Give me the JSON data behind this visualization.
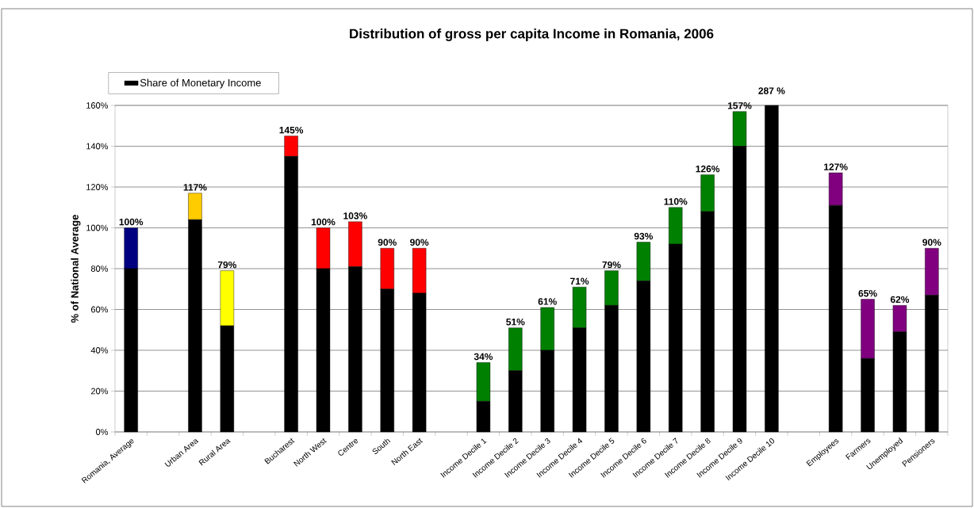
{
  "chart_data": {
    "type": "bar",
    "stacked": true,
    "title": "Distribution of gross per capita Income in Romania, 2006",
    "ylabel": "% of National Average",
    "categories": [
      "Romania, Average",
      null,
      "Urban Area",
      "Rural Area",
      null,
      "Bucharest",
      "North West",
      "Centre",
      "South",
      "North East",
      null,
      "Income Decile 1",
      "Income Decile 2",
      "Income Decile 3",
      "Income Decile 4",
      "Income Decile 5",
      "Income Decile 6",
      "Income Decile 7",
      "Income Decile 8",
      "Income Decile 9",
      "Income Decile 10",
      null,
      "Employees",
      "Farmers",
      "Unemployed",
      "Pensioners"
    ],
    "series": [
      {
        "name": "Share of Monetary Income",
        "color": "#000000",
        "values": [
          80,
          null,
          104,
          52,
          null,
          135,
          80,
          81,
          70,
          68,
          null,
          15,
          30,
          40,
          51,
          62,
          74,
          92,
          108,
          140,
          160,
          null,
          111,
          36,
          49,
          67
        ]
      },
      {
        "colors": [
          "#000080",
          null,
          "#ffcc00",
          "#ffff00",
          null,
          "#ff0000",
          "#ff0000",
          "#ff0000",
          "#ff0000",
          "#ff0000",
          null,
          "#008000",
          "#008000",
          "#008000",
          "#008000",
          "#008000",
          "#008000",
          "#008000",
          "#008000",
          "#008000",
          null,
          null,
          "#800080",
          "#800080",
          "#800080",
          "#800080"
        ],
        "values": [
          20,
          null,
          13,
          27,
          null,
          10,
          20,
          22,
          20,
          22,
          null,
          19,
          21,
          21,
          20,
          17,
          19,
          18,
          18,
          17,
          null,
          null,
          16,
          29,
          13,
          23
        ]
      }
    ],
    "annotations": [
      {
        "text": "100%",
        "x": "Romania, Average",
        "y": 100
      },
      {
        "text": "117%",
        "x": "Urban Area",
        "y": 117
      },
      {
        "text": "79%",
        "x": "Rural Area",
        "y": 79
      },
      {
        "text": "145%",
        "x": "Bucharest",
        "y": 145
      },
      {
        "text": "100%",
        "x": "North West",
        "y": 100
      },
      {
        "text": "103%",
        "x": "Centre",
        "y": 103
      },
      {
        "text": "90%",
        "x": "South",
        "y": 90
      },
      {
        "text": "90%",
        "x": "North East",
        "y": 90
      },
      {
        "text": "34%",
        "x": "Income Decile 1",
        "y": 34
      },
      {
        "text": "51%",
        "x": "Income Decile 2",
        "y": 51
      },
      {
        "text": "61%",
        "x": "Income Decile 3",
        "y": 61
      },
      {
        "text": "71%",
        "x": "Income Decile 4",
        "y": 71
      },
      {
        "text": "79%",
        "x": "Income Decile 5",
        "y": 79
      },
      {
        "text": "93%",
        "x": "Income Decile 6",
        "y": 93
      },
      {
        "text": "110%",
        "x": "Income Decile 7",
        "y": 110
      },
      {
        "text": "126%",
        "x": "Income Decile 8",
        "y": 126
      },
      {
        "text": "157%",
        "x": "Income Decile 9",
        "y": 157
      },
      "287 %",
      {
        "text": "127%",
        "x": "Employees",
        "y": 127
      },
      {
        "text": "65%",
        "x": "Farmers",
        "y": 65
      },
      {
        "text": "62%",
        "x": "Unemployed",
        "y": 62
      },
      {
        "text": "90%",
        "x": "Pensioners",
        "y": 90
      }
    ],
    "ylim": [
      0,
      160
    ],
    "yticks": [
      {
        "value": 0,
        "label": "0%"
      },
      {
        "value": 20,
        "label": "20%"
      },
      {
        "value": 40,
        "label": "40%"
      },
      {
        "value": 60,
        "label": "60%"
      },
      {
        "value": 80,
        "label": "80%"
      },
      {
        "value": 100,
        "label": "100%"
      },
      {
        "value": 120,
        "label": "120%"
      },
      {
        "value": 140,
        "label": "140%"
      },
      {
        "value": 160,
        "label": "160%"
      }
    ],
    "grid": "y",
    "legend": "top left"
  }
}
